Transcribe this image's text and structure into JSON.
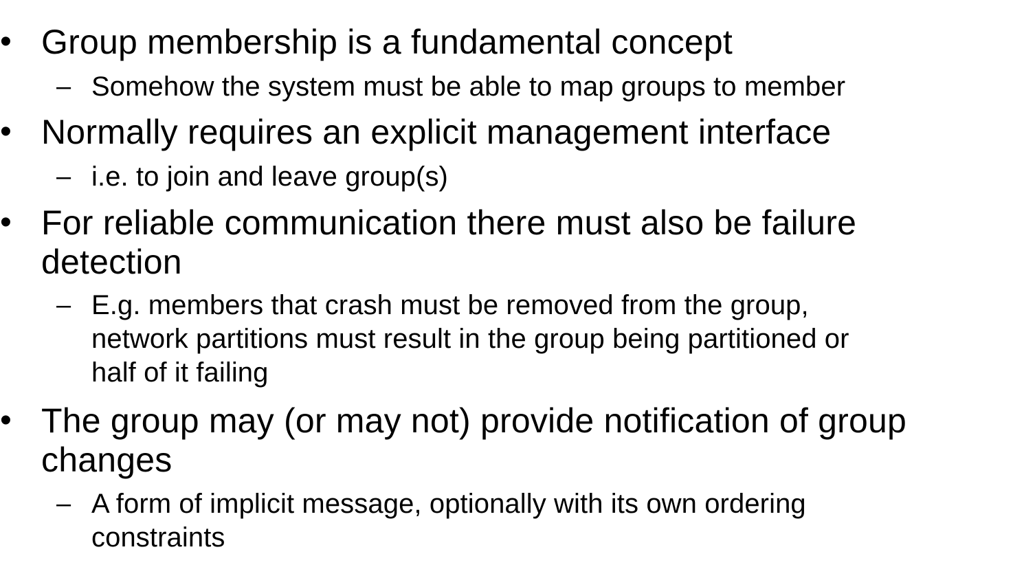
{
  "slide": {
    "bullet_symbol": "•",
    "dash_symbol": "–",
    "items": [
      {
        "lines": [
          "Group membership is a fundamental concept"
        ]
      },
      {
        "lines": [
          "Somehow the system must be able to map groups to member"
        ]
      },
      {
        "lines": [
          "Normally requires an explicit management interface"
        ]
      },
      {
        "lines": [
          "i.e. to join and leave group(s)"
        ]
      },
      {
        "lines": [
          "For reliable communication there must also be failure",
          "detection"
        ]
      },
      {
        "lines": [
          "E.g. members that crash must be removed from the group,",
          "network partitions must result in the group being partitioned or",
          "half of it failing"
        ]
      },
      {
        "lines": [
          "The group may (or may not) provide notification of group",
          "changes"
        ]
      },
      {
        "lines": [
          "A form of implicit message, optionally with its own ordering",
          "constraints"
        ]
      }
    ]
  }
}
